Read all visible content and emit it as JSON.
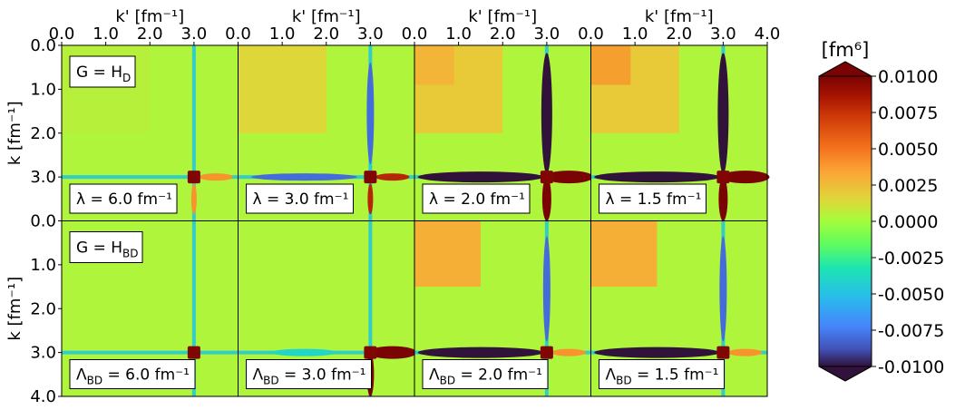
{
  "figure": {
    "xaxis_label": "k' [fm⁻¹]",
    "yaxis_label": "k [fm⁻¹]",
    "x_ticks": [
      "0.0",
      "1.0",
      "2.0",
      "3.0"
    ],
    "x_ticks_last": [
      "0.0",
      "1.0",
      "2.0",
      "3.0",
      "4.0"
    ],
    "y_ticks_top": [
      "0.0",
      "1.0",
      "2.0",
      "3.0"
    ],
    "y_ticks_bottom": [
      "0.0",
      "1.0",
      "2.0",
      "3.0",
      "4.0"
    ],
    "row_labels": [
      {
        "prefix": "G = H",
        "sub": "D"
      },
      {
        "prefix": "G = H",
        "sub": "BD"
      }
    ],
    "panel_labels": [
      [
        "λ = 6.0 fm⁻¹",
        "λ = 3.0 fm⁻¹",
        "λ = 2.0 fm⁻¹",
        "λ = 1.5 fm⁻¹"
      ],
      [
        "Λ_BD = 6.0 fm⁻¹",
        "Λ_BD = 3.0 fm⁻¹",
        "Λ_BD = 2.0 fm⁻¹",
        "Λ_BD = 1.5 fm⁻¹"
      ]
    ],
    "colorbar": {
      "unit_label": "[fm⁶]",
      "ticks": [
        "0.0100",
        "0.0075",
        "0.0050",
        "0.0025",
        "0.0000",
        "-0.0025",
        "-0.0050",
        "-0.0075",
        "-0.0100"
      ]
    }
  },
  "chart_data": {
    "type": "heatmap",
    "colormap": "turbo",
    "xlabel": "k' [fm⁻¹]",
    "ylabel": "k [fm⁻¹]",
    "xlim": [
      0.0,
      4.0
    ],
    "ylim": [
      4.0,
      0.0
    ],
    "clim": [
      -0.01,
      0.01
    ],
    "colorbar_label": "[fm⁶]",
    "grid": false,
    "fixed_point_k_fm": 3.0,
    "panels": [
      {
        "row": "G = H_D",
        "param": "λ",
        "value": 6.0,
        "unit": "fm⁻¹",
        "background_value": 0.0003,
        "upper_left_value": 0.0005,
        "lowk_region_value": 0.0005,
        "positive_band": "weak",
        "negative_band": "none"
      },
      {
        "row": "G = H_D",
        "param": "λ",
        "value": 3.0,
        "unit": "fm⁻¹",
        "background_value": 0.0003,
        "upper_left_value": 0.0015,
        "lowk_region_value": 0.0015,
        "positive_band": "moderate",
        "negative_band": "moderate"
      },
      {
        "row": "G = H_D",
        "param": "λ",
        "value": 2.0,
        "unit": "fm⁻¹",
        "background_value": 0.0003,
        "upper_left_value": 0.003,
        "lowk_region_value": 0.002,
        "positive_band": "strong",
        "negative_band": "strong"
      },
      {
        "row": "G = H_D",
        "param": "λ",
        "value": 1.5,
        "unit": "fm⁻¹",
        "background_value": 0.0003,
        "upper_left_value": 0.004,
        "lowk_region_value": 0.002,
        "positive_band": "strong",
        "negative_band": "strong"
      },
      {
        "row": "G = H_BD",
        "param": "Λ_BD",
        "value": 6.0,
        "unit": "fm⁻¹",
        "background_value": 0.0003,
        "upper_left_value": 0.0003,
        "lowk_region_value": 0.0003,
        "positive_band": "none",
        "negative_band": "none"
      },
      {
        "row": "G = H_BD",
        "param": "Λ_BD",
        "value": 3.0,
        "unit": "fm⁻¹",
        "background_value": 0.0003,
        "upper_left_value": 0.0003,
        "lowk_region_value": 0.0003,
        "positive_band": "strong",
        "negative_band": "weak"
      },
      {
        "row": "G = H_BD",
        "param": "Λ_BD",
        "value": 2.0,
        "unit": "fm⁻¹",
        "background_value": 0.0003,
        "upper_left_value": 0.003,
        "lowk_region_value": 0.003,
        "positive_band": "weak",
        "negative_band": "strong"
      },
      {
        "row": "G = H_BD",
        "param": "Λ_BD",
        "value": 1.5,
        "unit": "fm⁻¹",
        "background_value": 0.0003,
        "upper_left_value": 0.003,
        "lowk_region_value": 0.003,
        "positive_band": "weak",
        "negative_band": "strong"
      }
    ]
  }
}
